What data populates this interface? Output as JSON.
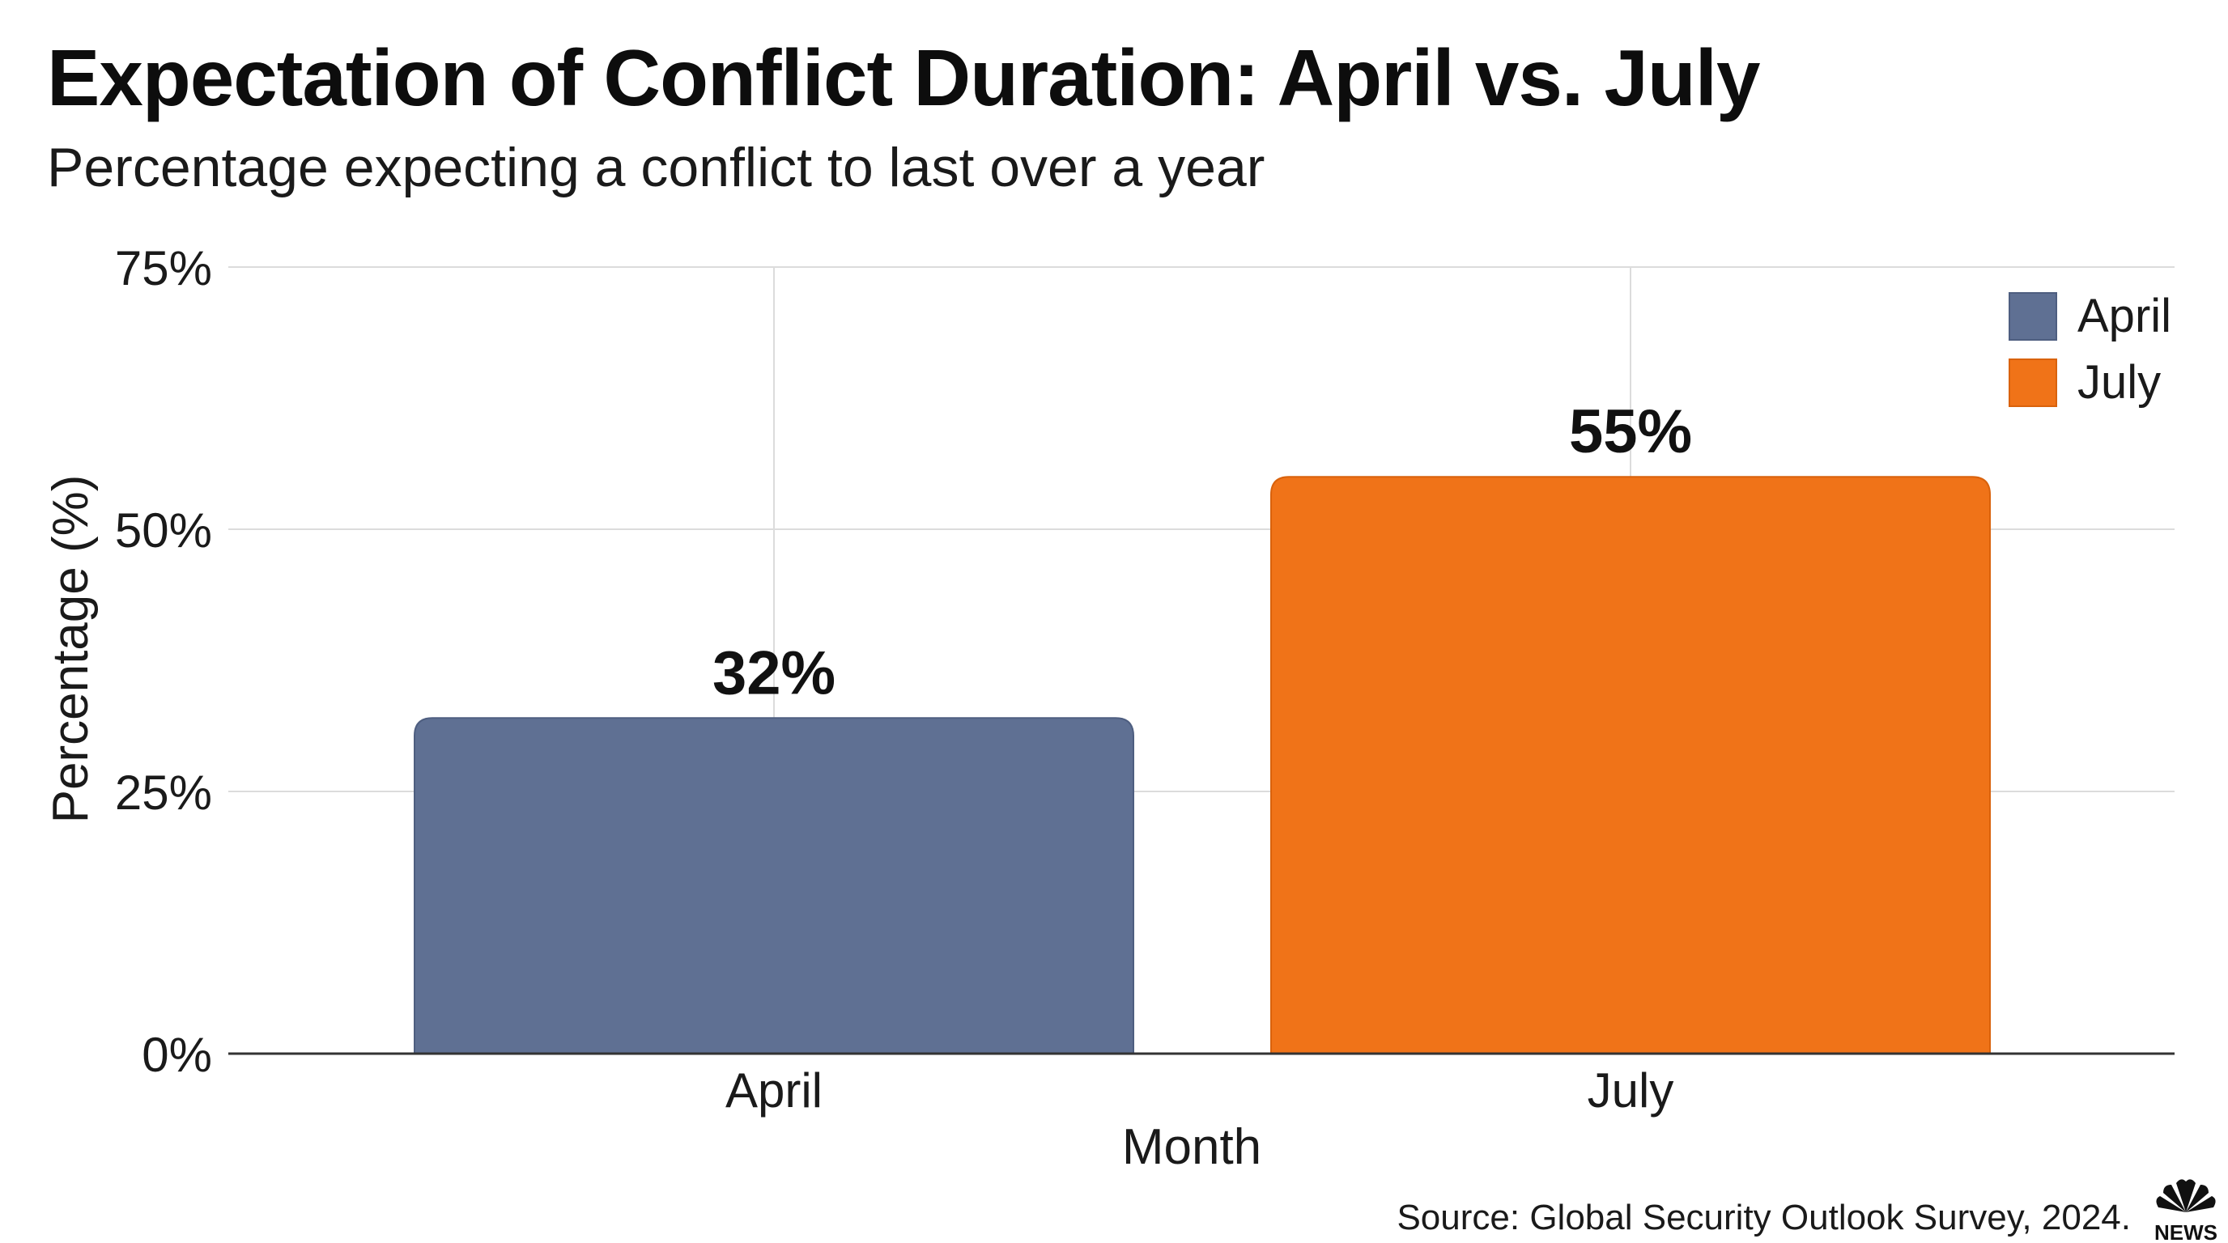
{
  "chart_data": {
    "type": "bar",
    "title": "Expectation of Conflict Duration: April vs. July",
    "subtitle": "Percentage expecting a conflict to last over a year",
    "xlabel": "Month",
    "ylabel": "Percentage (%)",
    "categories": [
      "April",
      "July"
    ],
    "values": [
      32,
      55
    ],
    "data_labels": [
      "32%",
      "55%"
    ],
    "colors": [
      "#5f7093",
      "#f07318"
    ],
    "ylim": [
      0,
      75
    ],
    "yticks": [
      0,
      25,
      50,
      75
    ],
    "ytick_labels": [
      "0%",
      "25%",
      "50%",
      "75%"
    ],
    "grid": true,
    "legend": {
      "placement": "top-right",
      "entries": [
        {
          "label": "April",
          "color": "#5f7093"
        },
        {
          "label": "July",
          "color": "#f07318"
        }
      ]
    }
  },
  "footer": {
    "source": "Source: Global Security Outlook Survey, 2024.",
    "logo_icon": "nbc-peacock-icon",
    "logo_text": "NEWS"
  }
}
